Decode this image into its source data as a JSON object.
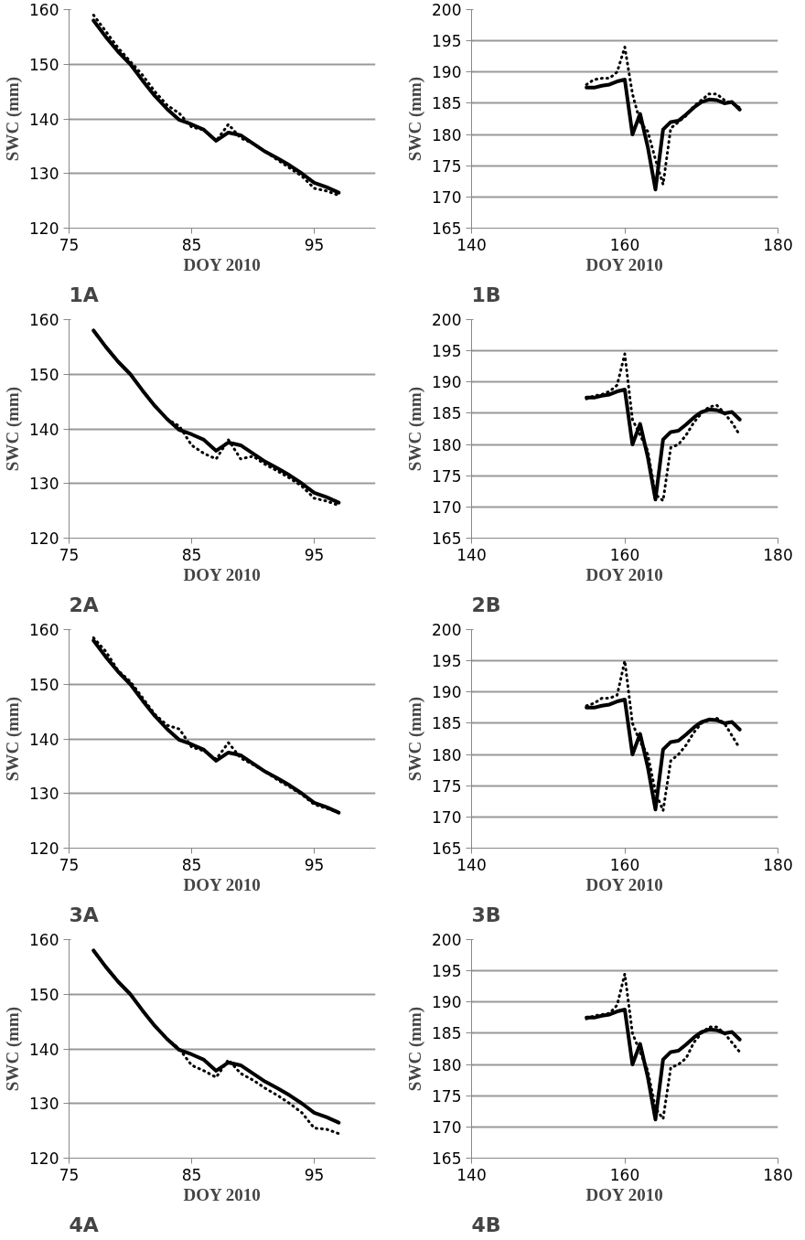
{
  "chart_data": [
    {
      "type": "line",
      "annotations": [
        "1A"
      ],
      "xlabel": "DOY 2010",
      "ylabel": "SWC (mm)",
      "xlim": [
        75,
        100
      ],
      "xticks": [
        75,
        85,
        95
      ],
      "ylim": [
        120,
        160
      ],
      "yticks": [
        120,
        130,
        140,
        150,
        160
      ],
      "grid": "y",
      "x": [
        77,
        78,
        79,
        80,
        81,
        82,
        83,
        84,
        85,
        86,
        87,
        88,
        89,
        90,
        91,
        92,
        93,
        94,
        95,
        96,
        97
      ],
      "series": [
        {
          "color": "#000000",
          "line_style": "solid",
          "values": [
            158,
            155,
            152.3,
            150,
            147,
            144.2,
            141.8,
            139.8,
            139,
            138,
            136,
            137.5,
            137,
            135.5,
            134,
            132.8,
            131.5,
            130,
            128.3,
            127.5,
            126.5
          ]
        },
        {
          "color": "#000000",
          "line_style": "dotted",
          "values": [
            159,
            156,
            153,
            150.5,
            148,
            145,
            142.5,
            141,
            138.5,
            138,
            136,
            139,
            136.5,
            135.5,
            134,
            132.5,
            131,
            129.5,
            127.3,
            126.8,
            126
          ]
        }
      ]
    },
    {
      "type": "line",
      "annotations": [
        "1B"
      ],
      "xlabel": "DOY 2010",
      "ylabel": "SWC (mm)",
      "xlim": [
        140,
        180
      ],
      "xticks": [
        140,
        160,
        180
      ],
      "ylim": [
        165,
        200
      ],
      "yticks": [
        165,
        170,
        175,
        180,
        185,
        190,
        195,
        200
      ],
      "grid": "y",
      "x": [
        155,
        156,
        157,
        158,
        159,
        160,
        161,
        162,
        163,
        164,
        165,
        166,
        167,
        168,
        169,
        170,
        171,
        172,
        173,
        174,
        175
      ],
      "series": [
        {
          "color": "#000000",
          "line_style": "solid",
          "values": [
            187.5,
            187.5,
            187.8,
            188,
            188.5,
            188.8,
            180,
            183.3,
            178,
            171.2,
            180.8,
            182,
            182.2,
            183.2,
            184.3,
            185.2,
            185.6,
            185.5,
            185,
            185.2,
            184
          ]
        },
        {
          "color": "#000000",
          "line_style": "dotted",
          "values": [
            188,
            188.8,
            189,
            189,
            190,
            194,
            186.5,
            182,
            180.5,
            176,
            172,
            181,
            182,
            183,
            184.5,
            185.5,
            186.5,
            186.5,
            185.5,
            185,
            184.3
          ]
        }
      ]
    },
    {
      "type": "line",
      "annotations": [
        "2A"
      ],
      "xlabel": "DOY 2010",
      "ylabel": "SWC (mm)",
      "xlim": [
        75,
        100
      ],
      "xticks": [
        75,
        85,
        95
      ],
      "ylim": [
        120,
        160
      ],
      "yticks": [
        120,
        130,
        140,
        150,
        160
      ],
      "grid": "y",
      "x": [
        77,
        78,
        79,
        80,
        81,
        82,
        83,
        84,
        85,
        86,
        87,
        88,
        89,
        90,
        91,
        92,
        93,
        94,
        95,
        96,
        97
      ],
      "series": [
        {
          "color": "#000000",
          "line_style": "solid",
          "values": [
            158,
            155,
            152.3,
            150,
            147,
            144.2,
            141.8,
            139.8,
            139,
            138,
            136,
            137.5,
            137,
            135.5,
            134,
            132.8,
            131.5,
            130,
            128.3,
            127.5,
            126.5
          ]
        },
        {
          "color": "#000000",
          "line_style": "dotted",
          "values": [
            158,
            155,
            152.3,
            150,
            147,
            144.2,
            141.8,
            140.5,
            137,
            135.5,
            134.5,
            138,
            134.5,
            135,
            133.5,
            132.3,
            131,
            129.5,
            127.3,
            126.8,
            126
          ]
        }
      ]
    },
    {
      "type": "line",
      "annotations": [
        "2B"
      ],
      "xlabel": "DOY 2010",
      "ylabel": "SWC (mm)",
      "xlim": [
        140,
        180
      ],
      "xticks": [
        140,
        160,
        180
      ],
      "ylim": [
        165,
        200
      ],
      "yticks": [
        165,
        170,
        175,
        180,
        185,
        190,
        195,
        200
      ],
      "grid": "y",
      "x": [
        155,
        156,
        157,
        158,
        159,
        160,
        161,
        162,
        163,
        164,
        165,
        166,
        167,
        168,
        169,
        170,
        171,
        172,
        173,
        174,
        175
      ],
      "series": [
        {
          "color": "#000000",
          "line_style": "solid",
          "values": [
            187.5,
            187.5,
            187.8,
            188,
            188.5,
            188.8,
            180,
            183.3,
            178,
            171.2,
            180.8,
            182,
            182.2,
            183.2,
            184.3,
            185.2,
            185.6,
            185.5,
            185,
            185.2,
            184
          ]
        },
        {
          "color": "#000000",
          "line_style": "dotted",
          "values": [
            187.3,
            187.8,
            188,
            188.5,
            189.5,
            194.5,
            184,
            181.5,
            179,
            172,
            171,
            179.5,
            180,
            181.5,
            183.5,
            185,
            186,
            186.3,
            185,
            183.5,
            181.5
          ]
        }
      ]
    },
    {
      "type": "line",
      "annotations": [
        "3A"
      ],
      "xlabel": "DOY 2010",
      "ylabel": "SWC (mm)",
      "xlim": [
        75,
        100
      ],
      "xticks": [
        75,
        85,
        95
      ],
      "ylim": [
        120,
        160
      ],
      "yticks": [
        120,
        130,
        140,
        150,
        160
      ],
      "grid": "y",
      "x": [
        77,
        78,
        79,
        80,
        81,
        82,
        83,
        84,
        85,
        86,
        87,
        88,
        89,
        90,
        91,
        92,
        93,
        94,
        95,
        96,
        97
      ],
      "series": [
        {
          "color": "#000000",
          "line_style": "solid",
          "values": [
            158,
            155,
            152.3,
            150,
            147,
            144.2,
            141.8,
            139.8,
            139,
            138,
            136,
            137.5,
            137,
            135.5,
            134,
            132.8,
            131.5,
            130,
            128.3,
            127.5,
            126.5
          ]
        },
        {
          "color": "#000000",
          "line_style": "dotted",
          "values": [
            158.5,
            156,
            152.5,
            150.5,
            147.5,
            144.5,
            142.5,
            141.8,
            138.5,
            137.8,
            136.3,
            139.3,
            136.5,
            135.3,
            134,
            132.5,
            131.2,
            129.8,
            128,
            127.3,
            126.5
          ]
        }
      ]
    },
    {
      "type": "line",
      "annotations": [
        "3B"
      ],
      "xlabel": "DOY 2010",
      "ylabel": "SWC (mm)",
      "xlim": [
        140,
        180
      ],
      "xticks": [
        140,
        160,
        180
      ],
      "ylim": [
        165,
        200
      ],
      "yticks": [
        165,
        170,
        175,
        180,
        185,
        190,
        195,
        200
      ],
      "grid": "y",
      "x": [
        155,
        156,
        157,
        158,
        159,
        160,
        161,
        162,
        163,
        164,
        165,
        166,
        167,
        168,
        169,
        170,
        171,
        172,
        173,
        174,
        175
      ],
      "series": [
        {
          "color": "#000000",
          "line_style": "solid",
          "values": [
            187.5,
            187.5,
            187.8,
            188,
            188.5,
            188.8,
            180,
            183.3,
            178,
            171.2,
            180.8,
            182,
            182.2,
            183.2,
            184.3,
            185.2,
            185.6,
            185.5,
            185,
            185.2,
            184
          ]
        },
        {
          "color": "#000000",
          "line_style": "dotted",
          "values": [
            187.8,
            188.2,
            189,
            189,
            189.5,
            195,
            185,
            182,
            180,
            174,
            171,
            179,
            180,
            181.5,
            183.5,
            185,
            185.5,
            185.8,
            185,
            183,
            181
          ]
        }
      ]
    },
    {
      "type": "line",
      "annotations": [
        "4A"
      ],
      "xlabel": "DOY 2010",
      "ylabel": "SWC (mm)",
      "xlim": [
        75,
        100
      ],
      "xticks": [
        75,
        85,
        95
      ],
      "ylim": [
        120,
        160
      ],
      "yticks": [
        120,
        130,
        140,
        150,
        160
      ],
      "grid": "y",
      "x": [
        77,
        78,
        79,
        80,
        81,
        82,
        83,
        84,
        85,
        86,
        87,
        88,
        89,
        90,
        91,
        92,
        93,
        94,
        95,
        96,
        97
      ],
      "series": [
        {
          "color": "#000000",
          "line_style": "solid",
          "values": [
            158,
            155,
            152.3,
            150,
            147,
            144.2,
            141.8,
            139.8,
            139,
            138,
            136,
            137.5,
            137,
            135.5,
            134,
            132.8,
            131.5,
            130,
            128.3,
            127.5,
            126.5
          ]
        },
        {
          "color": "#000000",
          "line_style": "dotted",
          "values": [
            158,
            155,
            152.3,
            150,
            147,
            144.2,
            141.8,
            140,
            137,
            136,
            134.8,
            138,
            135.5,
            134.3,
            132.8,
            131.5,
            130,
            128.3,
            125.5,
            125.3,
            124.5
          ]
        }
      ]
    },
    {
      "type": "line",
      "annotations": [
        "4B"
      ],
      "xlabel": "DOY 2010",
      "ylabel": "SWC (mm)",
      "xlim": [
        140,
        180
      ],
      "xticks": [
        140,
        160,
        180
      ],
      "ylim": [
        165,
        200
      ],
      "yticks": [
        165,
        170,
        175,
        180,
        185,
        190,
        195,
        200
      ],
      "grid": "y",
      "x": [
        155,
        156,
        157,
        158,
        159,
        160,
        161,
        162,
        163,
        164,
        165,
        166,
        167,
        168,
        169,
        170,
        171,
        172,
        173,
        174,
        175
      ],
      "series": [
        {
          "color": "#000000",
          "line_style": "solid",
          "values": [
            187.5,
            187.5,
            187.8,
            188,
            188.5,
            188.8,
            180,
            183.3,
            178,
            171.2,
            180.8,
            182,
            182.2,
            183.2,
            184.3,
            185.2,
            185.6,
            185.5,
            185,
            185.2,
            184
          ]
        },
        {
          "color": "#000000",
          "line_style": "dotted",
          "values": [
            187.3,
            187.8,
            188,
            188.2,
            189.5,
            194.5,
            185,
            182,
            179,
            173,
            171.3,
            179.5,
            180,
            181,
            183.5,
            185,
            186,
            186,
            185,
            183.5,
            182
          ]
        }
      ]
    }
  ]
}
